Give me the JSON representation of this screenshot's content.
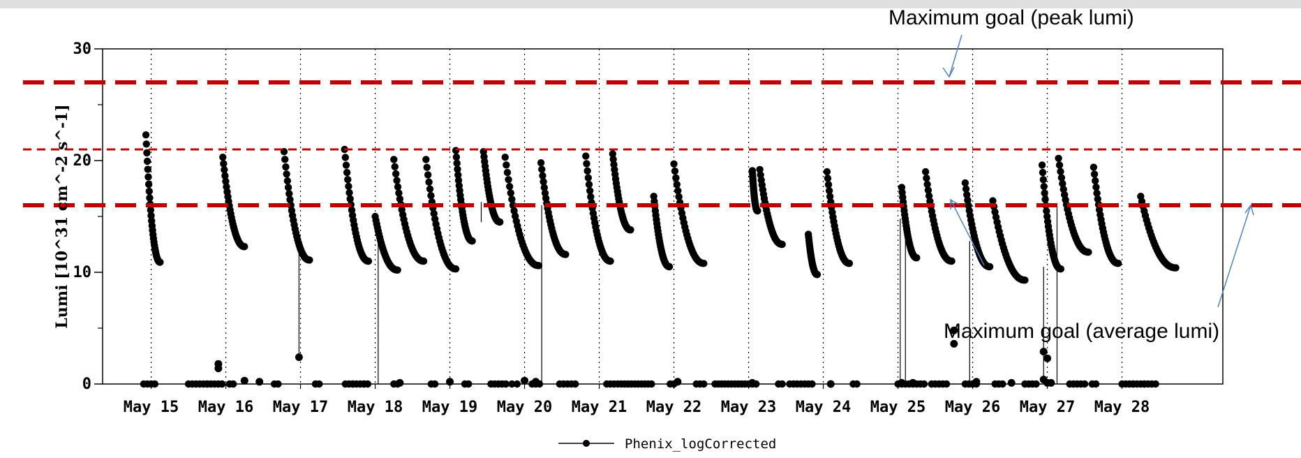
{
  "colors": {
    "top_bar": "#e0e0e0",
    "goal_line": "#c00000",
    "arrow": "#4f81bd",
    "series": "#000000"
  },
  "annotations": {
    "peak_goal": "Maximum goal (peak lumi)",
    "average_goal": "Maximum goal (average lumi)"
  },
  "chart_data": {
    "type": "scatter",
    "title": "",
    "xlabel": "",
    "ylabel": "Lumi [10^31 cm^-2 s^-1]",
    "xlim": [
      14.35,
      29.35
    ],
    "ylim": [
      0,
      30
    ],
    "yticks": [
      "0",
      "10",
      "20",
      "30"
    ],
    "x_tick_positions": [
      15,
      16,
      17,
      18,
      19,
      20,
      21,
      22,
      23,
      24,
      25,
      26,
      27,
      28
    ],
    "x_tick_labels": [
      "May 15",
      "May 16",
      "May 17",
      "May 18",
      "May 19",
      "May 20",
      "May 21",
      "May 22",
      "May 23",
      "May 24",
      "May 25",
      "May 26",
      "May 27",
      "May 28"
    ],
    "grid": "vertical dotted at day boundaries",
    "legend": {
      "label": "Phenix_logCorrected",
      "placement": "bottom-center"
    },
    "goal_lines": [
      {
        "y": 27,
        "style": "long-dash"
      },
      {
        "y": 21,
        "style": "short-dash"
      },
      {
        "y": 16,
        "style": "long-dash"
      }
    ],
    "series": [
      {
        "fills": [
          {
            "x0": 14.93,
            "x1": 15.12,
            "y0": 22.3,
            "y1": 10.9
          },
          {
            "x0": 15.96,
            "x1": 16.25,
            "y0": 20.3,
            "y1": 12.3
          },
          {
            "x0": 16.78,
            "x1": 17.12,
            "y0": 20.8,
            "y1": 11.1
          },
          {
            "x0": 17.59,
            "x1": 17.91,
            "y0": 21.0,
            "y1": 11.0
          },
          {
            "x0": 18.0,
            "x1": 18.3,
            "y0": 15.0,
            "y1": 10.2
          },
          {
            "x0": 18.25,
            "x1": 18.65,
            "y0": 20.1,
            "y1": 11.0
          },
          {
            "x0": 18.68,
            "x1": 19.08,
            "y0": 20.1,
            "y1": 10.3
          },
          {
            "x0": 19.08,
            "x1": 19.3,
            "y0": 20.9,
            "y1": 12.8
          },
          {
            "x0": 19.45,
            "x1": 19.67,
            "y0": 20.8,
            "y1": 14.5
          },
          {
            "x0": 19.74,
            "x1": 20.19,
            "y0": 20.3,
            "y1": 10.6
          },
          {
            "x0": 20.22,
            "x1": 20.55,
            "y0": 19.8,
            "y1": 11.6
          },
          {
            "x0": 20.82,
            "x1": 21.15,
            "y0": 20.4,
            "y1": 11.0
          },
          {
            "x0": 21.18,
            "x1": 21.42,
            "y0": 20.6,
            "y1": 13.8
          },
          {
            "x0": 21.73,
            "x1": 21.94,
            "y0": 16.8,
            "y1": 10.5
          },
          {
            "x0": 22.0,
            "x1": 22.4,
            "y0": 19.7,
            "y1": 10.8
          },
          {
            "x0": 23.05,
            "x1": 23.12,
            "y0": 19.1,
            "y1": 15.5
          },
          {
            "x0": 23.15,
            "x1": 23.45,
            "y0": 19.2,
            "y1": 12.5
          },
          {
            "x0": 23.8,
            "x1": 23.92,
            "y0": 13.4,
            "y1": 9.8
          },
          {
            "x0": 24.05,
            "x1": 24.35,
            "y0": 19.0,
            "y1": 10.8
          },
          {
            "x0": 25.05,
            "x1": 25.25,
            "y0": 17.6,
            "y1": 11.3
          },
          {
            "x0": 25.37,
            "x1": 25.72,
            "y0": 19.0,
            "y1": 11.0
          },
          {
            "x0": 25.9,
            "x1": 26.23,
            "y0": 18.0,
            "y1": 10.5
          },
          {
            "x0": 26.27,
            "x1": 26.7,
            "y0": 16.4,
            "y1": 9.3
          },
          {
            "x0": 26.93,
            "x1": 27.18,
            "y0": 19.6,
            "y1": 10.3
          },
          {
            "x0": 27.15,
            "x1": 27.55,
            "y0": 20.2,
            "y1": 11.8
          },
          {
            "x0": 27.62,
            "x1": 27.95,
            "y0": 19.4,
            "y1": 10.8
          },
          {
            "x0": 28.25,
            "x1": 28.72,
            "y0": 16.8,
            "y1": 10.4
          }
        ],
        "vertical_lines": [
          {
            "x": 16.98,
            "y0": 2.4,
            "y1": 13.6
          },
          {
            "x": 18.04,
            "y0": 0,
            "y1": 14.5
          },
          {
            "x": 19.42,
            "y0": 14.5,
            "y1": 16.3
          },
          {
            "x": 20.23,
            "y0": 0,
            "y1": 16.0
          },
          {
            "x": 25.03,
            "y0": 0,
            "y1": 14.8
          },
          {
            "x": 25.1,
            "y0": 0,
            "y1": 13.4
          },
          {
            "x": 25.96,
            "y0": 0,
            "y1": 12.8
          },
          {
            "x": 26.95,
            "y0": 0,
            "y1": 10.5
          },
          {
            "x": 27.13,
            "y0": 0,
            "y1": 16.0
          }
        ],
        "zero_runs": [
          [
            14.9,
            15.05
          ],
          [
            15.5,
            15.75
          ],
          [
            15.75,
            15.95
          ],
          [
            16.05,
            16.1
          ],
          [
            16.65,
            16.7
          ],
          [
            17.2,
            17.25
          ],
          [
            17.6,
            17.7
          ],
          [
            17.7,
            17.85
          ],
          [
            17.85,
            17.9
          ],
          [
            18.25,
            18.3
          ],
          [
            18.75,
            18.8
          ],
          [
            19.2,
            19.25
          ],
          [
            19.55,
            19.75
          ],
          [
            19.83,
            19.9
          ],
          [
            20.1,
            20.2
          ],
          [
            20.47,
            20.68
          ],
          [
            21.1,
            21.2
          ],
          [
            21.25,
            21.7
          ],
          [
            21.95,
            22.0
          ],
          [
            22.3,
            22.4
          ],
          [
            22.55,
            22.95
          ],
          [
            23.0,
            23.1
          ],
          [
            23.4,
            23.45
          ],
          [
            23.55,
            23.85
          ],
          [
            24.4,
            24.45
          ],
          [
            25.0,
            25.35
          ],
          [
            25.45,
            25.65
          ],
          [
            25.9,
            26.05
          ],
          [
            26.3,
            26.4
          ],
          [
            26.7,
            26.85
          ],
          [
            27.3,
            27.5
          ],
          [
            27.6,
            27.65
          ],
          [
            28.0,
            28.15
          ],
          [
            28.15,
            28.3
          ],
          [
            28.3,
            28.45
          ]
        ],
        "points": [
          {
            "x": 15.9,
            "y": 1.8
          },
          {
            "x": 15.9,
            "y": 1.4
          },
          {
            "x": 16.25,
            "y": 0.3
          },
          {
            "x": 16.45,
            "y": 0.2
          },
          {
            "x": 16.98,
            "y": 2.4
          },
          {
            "x": 18.33,
            "y": 0.1
          },
          {
            "x": 19.0,
            "y": 0.2
          },
          {
            "x": 20.0,
            "y": 0.3
          },
          {
            "x": 20.15,
            "y": 0.2
          },
          {
            "x": 22.05,
            "y": 0.2
          },
          {
            "x": 23.05,
            "y": 0.1
          },
          {
            "x": 24.1,
            "y": 0
          },
          {
            "x": 25.75,
            "y": 4.8
          },
          {
            "x": 25.75,
            "y": 3.6
          },
          {
            "x": 26.05,
            "y": 0.2
          },
          {
            "x": 26.52,
            "y": 0.1
          },
          {
            "x": 26.95,
            "y": 2.9
          },
          {
            "x": 26.95,
            "y": 0.4
          },
          {
            "x": 27.0,
            "y": 2.3
          },
          {
            "x": 27.0,
            "y": 0.1
          },
          {
            "x": 27.05,
            "y": 0.1
          },
          {
            "x": 25.05,
            "y": 0.1
          },
          {
            "x": 25.2,
            "y": 0.1
          }
        ]
      }
    ]
  }
}
